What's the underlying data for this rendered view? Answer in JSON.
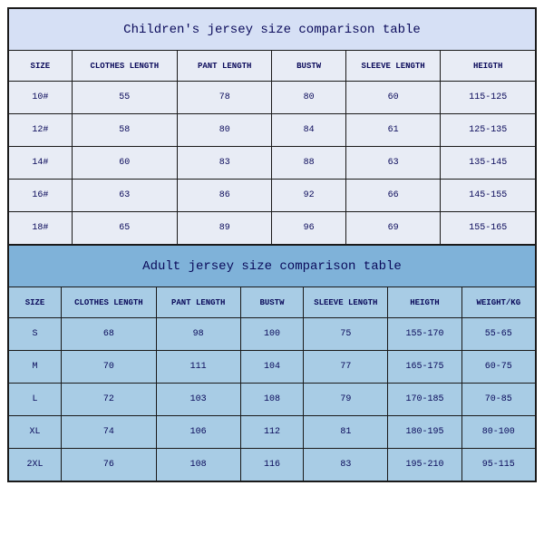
{
  "children_table": {
    "title": "Children's jersey size comparison table",
    "title_bg": "#d6e0f5",
    "header_bg": "#e8ecf5",
    "row_bg": "#e8ecf5",
    "columns": [
      "SIZE",
      "CLOTHES LENGTH",
      "PANT LENGTH",
      "BUSTW",
      "SLEEVE LENGTH",
      "HEIGTH"
    ],
    "col_widths": [
      "12%",
      "20%",
      "18%",
      "14%",
      "18%",
      "18%"
    ],
    "rows": [
      [
        "10#",
        "55",
        "78",
        "80",
        "60",
        "115-125"
      ],
      [
        "12#",
        "58",
        "80",
        "84",
        "61",
        "125-135"
      ],
      [
        "14#",
        "60",
        "83",
        "88",
        "63",
        "135-145"
      ],
      [
        "16#",
        "63",
        "86",
        "92",
        "66",
        "145-155"
      ],
      [
        "18#",
        "65",
        "89",
        "96",
        "69",
        "155-165"
      ]
    ]
  },
  "adult_table": {
    "title": "Adult jersey size comparison table",
    "title_bg": "#7fb2d9",
    "header_bg": "#a8cce5",
    "row_bg": "#a8cce5",
    "columns": [
      "SIZE",
      "CLOTHES LENGTH",
      "PANT LENGTH",
      "BUSTW",
      "SLEEVE LENGTH",
      "HEIGTH",
      "WEIGHT/KG"
    ],
    "col_widths": [
      "10%",
      "18%",
      "16%",
      "12%",
      "16%",
      "14%",
      "14%"
    ],
    "rows": [
      [
        "S",
        "68",
        "98",
        "100",
        "75",
        "155-170",
        "55-65"
      ],
      [
        "M",
        "70",
        "111",
        "104",
        "77",
        "165-175",
        "60-75"
      ],
      [
        "L",
        "72",
        "103",
        "108",
        "79",
        "170-185",
        "70-85"
      ],
      [
        "XL",
        "74",
        "106",
        "112",
        "81",
        "180-195",
        "80-100"
      ],
      [
        "2XL",
        "76",
        "108",
        "116",
        "83",
        "195-210",
        "95-115"
      ]
    ]
  }
}
